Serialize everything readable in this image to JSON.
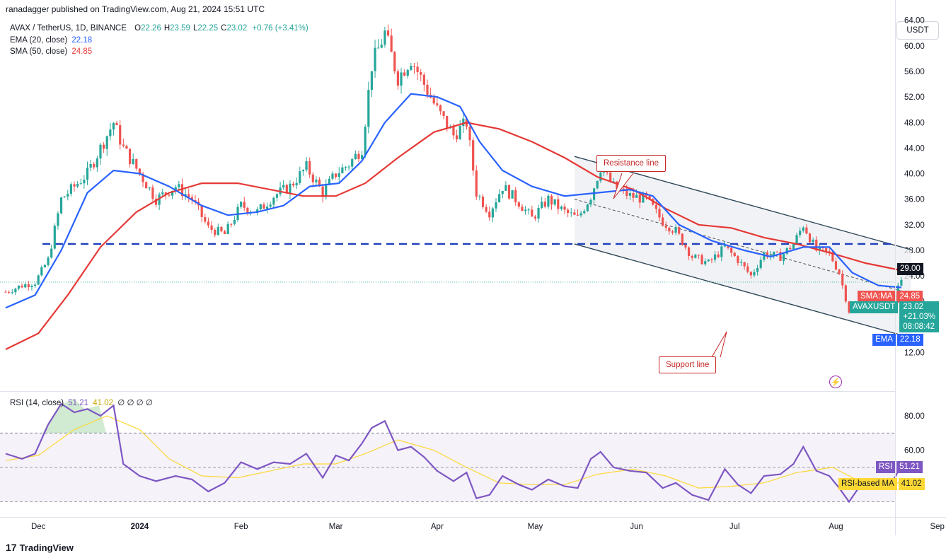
{
  "publisher": "ranadagger published on TradingView.com, Aug 21, 2024 15:51 UTC",
  "legend": {
    "symbol": "AVAX / TetherUS, 1D, BINANCE",
    "ohlc": [
      {
        "k": "O",
        "v": "22.26"
      },
      {
        "k": "H",
        "v": "23.59"
      },
      {
        "k": "L",
        "v": "22.25"
      },
      {
        "k": "C",
        "v": "23.02"
      }
    ],
    "change": "+0.76 (+3.41%)",
    "ema_label": "EMA (20, close)",
    "ema_value": "22.18",
    "sma_label": "SMA (50, close)",
    "sma_value": "24.85"
  },
  "currency": "USDT",
  "price_tags": {
    "level": "29.00",
    "sma_name": "SMA:MA",
    "sma_value": "24.85",
    "sym_name": "AVAXUSDT",
    "price": "23.02",
    "change_pct": "+21.03%",
    "countdown": "08:08:42",
    "ema_name": "EMA",
    "ema_value": "22.18"
  },
  "annotations": {
    "resistance": "Resistance line",
    "support": "Support line"
  },
  "rsi_legend": {
    "label": "RSI (14, close)",
    "rsi": "51.21",
    "ma": "41.02",
    "nulls": "∅ ∅ ∅ ∅"
  },
  "rsi_tags": {
    "rsi_name": "RSI",
    "rsi_value": "51.21",
    "ma_name": "RSI-based MA",
    "ma_value": "41.02"
  },
  "brand": "TradingView",
  "colors": {
    "up": "#26a69a",
    "down": "#ef5350",
    "ema": "#2962ff",
    "sma": "#e53935",
    "rsi": "#7e57c2",
    "rsi_ma": "#fdd835",
    "level": "#1e3fbf"
  },
  "chart_data": {
    "type": "candlestick",
    "symbol": "AVAXUSDT",
    "interval": "1D",
    "price_axis": {
      "ticks": [
        64,
        60,
        56,
        52,
        48,
        44,
        40,
        36,
        32,
        28,
        24,
        20,
        16,
        12
      ],
      "range": [
        10,
        66
      ]
    },
    "time_axis": {
      "labels": [
        "Dec",
        "2024",
        "Feb",
        "Mar",
        "Apr",
        "May",
        "Jun",
        "Jul",
        "Aug",
        "Sep"
      ]
    },
    "horizontal_level": 29.0,
    "channel": {
      "resistance": [
        {
          "date": "2024-05-13",
          "price": 42.7
        },
        {
          "date": "2024-08-24",
          "price": 28.1
        }
      ],
      "support": [
        {
          "date": "2024-05-13",
          "price": 29.0
        },
        {
          "date": "2024-08-24",
          "price": 14.3
        }
      ],
      "midline": [
        {
          "date": "2024-05-13",
          "price": 36.0
        },
        {
          "date": "2024-08-24",
          "price": 21.2
        }
      ]
    },
    "close_path": [
      {
        "date": "2023-11-21",
        "price": 21.5
      },
      {
        "date": "2023-11-26",
        "price": 22.5
      },
      {
        "date": "2023-11-30",
        "price": 23.0
      },
      {
        "date": "2023-12-04",
        "price": 26.5
      },
      {
        "date": "2023-12-08",
        "price": 36.0
      },
      {
        "date": "2023-12-12",
        "price": 38.0
      },
      {
        "date": "2023-12-16",
        "price": 40.0
      },
      {
        "date": "2023-12-20",
        "price": 44.0
      },
      {
        "date": "2023-12-24",
        "price": 48.0
      },
      {
        "date": "2023-12-27",
        "price": 44.0
      },
      {
        "date": "2024-01-01",
        "price": 40.0
      },
      {
        "date": "2024-01-06",
        "price": 36.0
      },
      {
        "date": "2024-01-12",
        "price": 38.0
      },
      {
        "date": "2024-01-17",
        "price": 36.0
      },
      {
        "date": "2024-01-22",
        "price": 31.5
      },
      {
        "date": "2024-01-27",
        "price": 30.5
      },
      {
        "date": "2024-02-01",
        "price": 35.0
      },
      {
        "date": "2024-02-06",
        "price": 34.0
      },
      {
        "date": "2024-02-11",
        "price": 36.5
      },
      {
        "date": "2024-02-16",
        "price": 38.0
      },
      {
        "date": "2024-02-21",
        "price": 41.0
      },
      {
        "date": "2024-02-26",
        "price": 37.0
      },
      {
        "date": "2024-03-01",
        "price": 40.0
      },
      {
        "date": "2024-03-05",
        "price": 41.5
      },
      {
        "date": "2024-03-09",
        "price": 44.0
      },
      {
        "date": "2024-03-12",
        "price": 57.0
      },
      {
        "date": "2024-03-16",
        "price": 62.0
      },
      {
        "date": "2024-03-20",
        "price": 55.0
      },
      {
        "date": "2024-03-24",
        "price": 58.0
      },
      {
        "date": "2024-03-28",
        "price": 54.0
      },
      {
        "date": "2024-04-01",
        "price": 50.0
      },
      {
        "date": "2024-04-06",
        "price": 46.0
      },
      {
        "date": "2024-04-10",
        "price": 48.0
      },
      {
        "date": "2024-04-13",
        "price": 37.0
      },
      {
        "date": "2024-04-17",
        "price": 34.0
      },
      {
        "date": "2024-04-21",
        "price": 38.0
      },
      {
        "date": "2024-04-26",
        "price": 35.5
      },
      {
        "date": "2024-04-30",
        "price": 33.0
      },
      {
        "date": "2024-05-05",
        "price": 36.0
      },
      {
        "date": "2024-05-10",
        "price": 34.0
      },
      {
        "date": "2024-05-14",
        "price": 33.0
      },
      {
        "date": "2024-05-18",
        "price": 36.5
      },
      {
        "date": "2024-05-21",
        "price": 41.0
      },
      {
        "date": "2024-05-25",
        "price": 38.0
      },
      {
        "date": "2024-05-30",
        "price": 36.5
      },
      {
        "date": "2024-06-04",
        "price": 36.0
      },
      {
        "date": "2024-06-09",
        "price": 32.5
      },
      {
        "date": "2024-06-13",
        "price": 31.0
      },
      {
        "date": "2024-06-18",
        "price": 27.0
      },
      {
        "date": "2024-06-23",
        "price": 26.0
      },
      {
        "date": "2024-06-28",
        "price": 28.5
      },
      {
        "date": "2024-07-02",
        "price": 26.5
      },
      {
        "date": "2024-07-06",
        "price": 24.0
      },
      {
        "date": "2024-07-10",
        "price": 27.5
      },
      {
        "date": "2024-07-15",
        "price": 27.0
      },
      {
        "date": "2024-07-19",
        "price": 29.0
      },
      {
        "date": "2024-07-22",
        "price": 32.0
      },
      {
        "date": "2024-07-26",
        "price": 28.0
      },
      {
        "date": "2024-07-30",
        "price": 27.5
      },
      {
        "date": "2024-08-02",
        "price": 24.5
      },
      {
        "date": "2024-08-05",
        "price": 18.5
      },
      {
        "date": "2024-08-09",
        "price": 20.5
      },
      {
        "date": "2024-08-13",
        "price": 21.0
      },
      {
        "date": "2024-08-16",
        "price": 19.8
      },
      {
        "date": "2024-08-19",
        "price": 21.0
      },
      {
        "date": "2024-08-21",
        "price": 23.02
      }
    ],
    "ema20": [
      {
        "date": "2023-11-21",
        "price": 19.0
      },
      {
        "date": "2023-11-30",
        "price": 21.0
      },
      {
        "date": "2023-12-08",
        "price": 28.0
      },
      {
        "date": "2023-12-16",
        "price": 37.0
      },
      {
        "date": "2023-12-24",
        "price": 40.5
      },
      {
        "date": "2024-01-01",
        "price": 40.0
      },
      {
        "date": "2024-01-10",
        "price": 38.0
      },
      {
        "date": "2024-01-20",
        "price": 35.0
      },
      {
        "date": "2024-01-28",
        "price": 33.5
      },
      {
        "date": "2024-02-06",
        "price": 34.0
      },
      {
        "date": "2024-02-14",
        "price": 35.0
      },
      {
        "date": "2024-02-22",
        "price": 38.0
      },
      {
        "date": "2024-03-02",
        "price": 38.5
      },
      {
        "date": "2024-03-09",
        "price": 42.0
      },
      {
        "date": "2024-03-16",
        "price": 48.0
      },
      {
        "date": "2024-03-24",
        "price": 52.5
      },
      {
        "date": "2024-04-01",
        "price": 52.0
      },
      {
        "date": "2024-04-08",
        "price": 50.5
      },
      {
        "date": "2024-04-14",
        "price": 45.0
      },
      {
        "date": "2024-04-21",
        "price": 40.5
      },
      {
        "date": "2024-04-30",
        "price": 38.0
      },
      {
        "date": "2024-05-10",
        "price": 36.5
      },
      {
        "date": "2024-05-20",
        "price": 37.0
      },
      {
        "date": "2024-05-30",
        "price": 37.5
      },
      {
        "date": "2024-06-06",
        "price": 36.5
      },
      {
        "date": "2024-06-14",
        "price": 32.0
      },
      {
        "date": "2024-06-24",
        "price": 29.5
      },
      {
        "date": "2024-07-04",
        "price": 28.0
      },
      {
        "date": "2024-07-12",
        "price": 27.0
      },
      {
        "date": "2024-07-22",
        "price": 28.5
      },
      {
        "date": "2024-07-30",
        "price": 28.5
      },
      {
        "date": "2024-08-06",
        "price": 24.5
      },
      {
        "date": "2024-08-14",
        "price": 22.5
      },
      {
        "date": "2024-08-21",
        "price": 22.18
      }
    ],
    "sma50": [
      {
        "date": "2023-11-21",
        "price": 12.5
      },
      {
        "date": "2023-12-01",
        "price": 15.0
      },
      {
        "date": "2023-12-10",
        "price": 21.0
      },
      {
        "date": "2023-12-20",
        "price": 28.5
      },
      {
        "date": "2023-12-31",
        "price": 34.0
      },
      {
        "date": "2024-01-10",
        "price": 37.0
      },
      {
        "date": "2024-01-20",
        "price": 38.5
      },
      {
        "date": "2024-01-31",
        "price": 38.5
      },
      {
        "date": "2024-02-10",
        "price": 37.5
      },
      {
        "date": "2024-02-20",
        "price": 36.5
      },
      {
        "date": "2024-03-01",
        "price": 36.5
      },
      {
        "date": "2024-03-10",
        "price": 38.5
      },
      {
        "date": "2024-03-20",
        "price": 42.5
      },
      {
        "date": "2024-03-31",
        "price": 46.5
      },
      {
        "date": "2024-04-10",
        "price": 48.0
      },
      {
        "date": "2024-04-20",
        "price": 47.0
      },
      {
        "date": "2024-04-30",
        "price": 45.0
      },
      {
        "date": "2024-05-10",
        "price": 42.5
      },
      {
        "date": "2024-05-20",
        "price": 39.5
      },
      {
        "date": "2024-05-31",
        "price": 37.5
      },
      {
        "date": "2024-06-10",
        "price": 34.5
      },
      {
        "date": "2024-06-20",
        "price": 32.0
      },
      {
        "date": "2024-06-30",
        "price": 31.5
      },
      {
        "date": "2024-07-10",
        "price": 30.0
      },
      {
        "date": "2024-07-20",
        "price": 29.0
      },
      {
        "date": "2024-07-31",
        "price": 27.5
      },
      {
        "date": "2024-08-10",
        "price": 26.0
      },
      {
        "date": "2024-08-21",
        "price": 24.85
      }
    ],
    "rsi": {
      "ticks": [
        80,
        60
      ],
      "range": [
        25,
        95
      ],
      "bands": {
        "upper": 70,
        "middle": 50,
        "lower": 30
      },
      "series": [
        {
          "date": "2023-11-21",
          "value": 58
        },
        {
          "date": "2023-11-26",
          "value": 55
        },
        {
          "date": "2023-11-30",
          "value": 58
        },
        {
          "date": "2023-12-04",
          "value": 75
        },
        {
          "date": "2023-12-08",
          "value": 87
        },
        {
          "date": "2023-12-12",
          "value": 82
        },
        {
          "date": "2023-12-16",
          "value": 84
        },
        {
          "date": "2023-12-20",
          "value": 80
        },
        {
          "date": "2023-12-24",
          "value": 86
        },
        {
          "date": "2023-12-27",
          "value": 52
        },
        {
          "date": "2024-01-01",
          "value": 45
        },
        {
          "date": "2024-01-06",
          "value": 42
        },
        {
          "date": "2024-01-12",
          "value": 45
        },
        {
          "date": "2024-01-17",
          "value": 43
        },
        {
          "date": "2024-01-22",
          "value": 36
        },
        {
          "date": "2024-01-27",
          "value": 41
        },
        {
          "date": "2024-02-01",
          "value": 53
        },
        {
          "date": "2024-02-06",
          "value": 49
        },
        {
          "date": "2024-02-11",
          "value": 53
        },
        {
          "date": "2024-02-16",
          "value": 52
        },
        {
          "date": "2024-02-21",
          "value": 58
        },
        {
          "date": "2024-02-26",
          "value": 44
        },
        {
          "date": "2024-03-01",
          "value": 57
        },
        {
          "date": "2024-03-05",
          "value": 54
        },
        {
          "date": "2024-03-09",
          "value": 64
        },
        {
          "date": "2024-03-12",
          "value": 73
        },
        {
          "date": "2024-03-16",
          "value": 77
        },
        {
          "date": "2024-03-20",
          "value": 60
        },
        {
          "date": "2024-03-24",
          "value": 62
        },
        {
          "date": "2024-03-28",
          "value": 56
        },
        {
          "date": "2024-04-01",
          "value": 48
        },
        {
          "date": "2024-04-06",
          "value": 42
        },
        {
          "date": "2024-04-10",
          "value": 47
        },
        {
          "date": "2024-04-13",
          "value": 32
        },
        {
          "date": "2024-04-17",
          "value": 34
        },
        {
          "date": "2024-04-21",
          "value": 45
        },
        {
          "date": "2024-04-26",
          "value": 40
        },
        {
          "date": "2024-04-30",
          "value": 37
        },
        {
          "date": "2024-05-05",
          "value": 43
        },
        {
          "date": "2024-05-10",
          "value": 39
        },
        {
          "date": "2024-05-14",
          "value": 38
        },
        {
          "date": "2024-05-18",
          "value": 55
        },
        {
          "date": "2024-05-21",
          "value": 59
        },
        {
          "date": "2024-05-25",
          "value": 50
        },
        {
          "date": "2024-05-30",
          "value": 48
        },
        {
          "date": "2024-06-04",
          "value": 47
        },
        {
          "date": "2024-06-09",
          "value": 38
        },
        {
          "date": "2024-06-13",
          "value": 41
        },
        {
          "date": "2024-06-18",
          "value": 34
        },
        {
          "date": "2024-06-23",
          "value": 31
        },
        {
          "date": "2024-06-28",
          "value": 49
        },
        {
          "date": "2024-07-02",
          "value": 40
        },
        {
          "date": "2024-07-06",
          "value": 35
        },
        {
          "date": "2024-07-10",
          "value": 45
        },
        {
          "date": "2024-07-15",
          "value": 46
        },
        {
          "date": "2024-07-19",
          "value": 52
        },
        {
          "date": "2024-07-22",
          "value": 62
        },
        {
          "date": "2024-07-26",
          "value": 48
        },
        {
          "date": "2024-07-30",
          "value": 45
        },
        {
          "date": "2024-08-02",
          "value": 38
        },
        {
          "date": "2024-08-05",
          "value": 30
        },
        {
          "date": "2024-08-09",
          "value": 41
        },
        {
          "date": "2024-08-13",
          "value": 42
        },
        {
          "date": "2024-08-16",
          "value": 38
        },
        {
          "date": "2024-08-19",
          "value": 44
        },
        {
          "date": "2024-08-21",
          "value": 51.21
        }
      ],
      "ma": [
        {
          "date": "2023-11-21",
          "value": 54
        },
        {
          "date": "2023-12-01",
          "value": 57
        },
        {
          "date": "2023-12-12",
          "value": 72
        },
        {
          "date": "2023-12-22",
          "value": 80
        },
        {
          "date": "2024-01-01",
          "value": 72
        },
        {
          "date": "2024-01-10",
          "value": 55
        },
        {
          "date": "2024-01-20",
          "value": 45
        },
        {
          "date": "2024-01-31",
          "value": 44
        },
        {
          "date": "2024-02-10",
          "value": 48
        },
        {
          "date": "2024-02-20",
          "value": 52
        },
        {
          "date": "2024-03-01",
          "value": 52
        },
        {
          "date": "2024-03-10",
          "value": 58
        },
        {
          "date": "2024-03-20",
          "value": 66
        },
        {
          "date": "2024-03-31",
          "value": 60
        },
        {
          "date": "2024-04-10",
          "value": 50
        },
        {
          "date": "2024-04-20",
          "value": 41
        },
        {
          "date": "2024-04-30",
          "value": 40
        },
        {
          "date": "2024-05-10",
          "value": 40
        },
        {
          "date": "2024-05-20",
          "value": 46
        },
        {
          "date": "2024-05-31",
          "value": 49
        },
        {
          "date": "2024-06-10",
          "value": 45
        },
        {
          "date": "2024-06-20",
          "value": 38
        },
        {
          "date": "2024-06-30",
          "value": 39
        },
        {
          "date": "2024-07-10",
          "value": 41
        },
        {
          "date": "2024-07-20",
          "value": 47
        },
        {
          "date": "2024-07-31",
          "value": 50
        },
        {
          "date": "2024-08-10",
          "value": 40
        },
        {
          "date": "2024-08-21",
          "value": 41.02
        }
      ]
    }
  }
}
